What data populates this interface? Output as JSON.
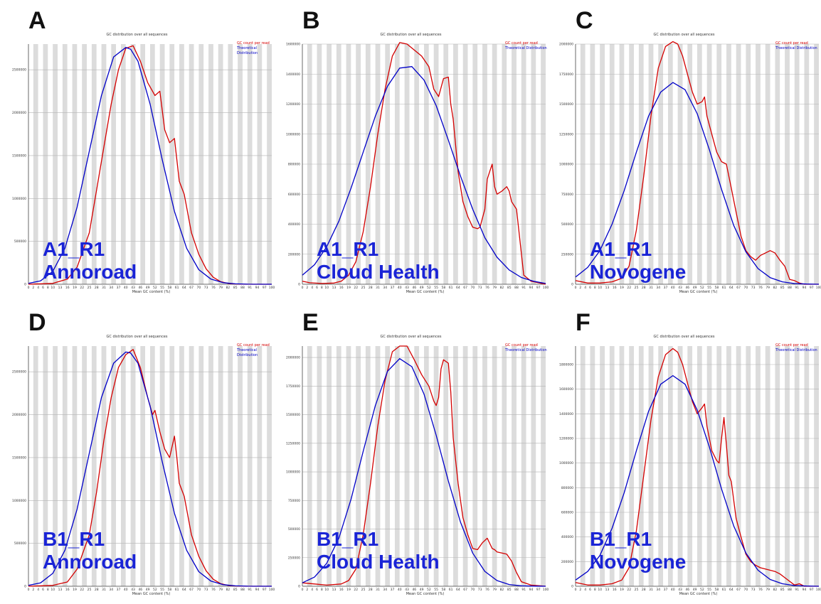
{
  "shared": {
    "chart_title": "GC distribution over all sequences",
    "xlabel": "Mean GC content (%)",
    "legend_red": "GC count per read",
    "legend_blue": "Theoretical Distribution",
    "x_ticks": [
      "0",
      "2",
      "4",
      "6",
      "8",
      "10",
      "13",
      "16",
      "19",
      "22",
      "25",
      "28",
      "31",
      "34",
      "37",
      "40",
      "43",
      "46",
      "49",
      "52",
      "55",
      "58",
      "61",
      "64",
      "67",
      "70",
      "73",
      "76",
      "79",
      "82",
      "85",
      "88",
      "91",
      "94",
      "97",
      "100"
    ],
    "colors": {
      "red": "#d40000",
      "blue": "#0000c8",
      "label": "#1a24d6"
    }
  },
  "panels": [
    {
      "letter": "A",
      "label_line1": "A1_R1",
      "label_line2": "Annoroad"
    },
    {
      "letter": "B",
      "label_line1": "A1_R1",
      "label_line2": "Cloud Health"
    },
    {
      "letter": "C",
      "label_line1": "A1_R1",
      "label_line2": "Novogene"
    },
    {
      "letter": "D",
      "label_line1": "B1_R1",
      "label_line2": "Annoroad"
    },
    {
      "letter": "E",
      "label_line1": "B1_R1",
      "label_line2": "Cloud Health"
    },
    {
      "letter": "F",
      "label_line1": "B1_R1",
      "label_line2": "Novogene"
    }
  ],
  "chart_data": [
    {
      "type": "line",
      "title": "GC distribution over all sequences",
      "xlabel": "Mean GC content (%)",
      "xlim": [
        0,
        100
      ],
      "ylim": [
        0,
        2800000
      ],
      "y_ticks": [
        0,
        500000,
        1000000,
        1500000,
        2000000,
        2500000
      ],
      "series": [
        {
          "name": "GC count per read",
          "x": [
            0,
            10,
            16,
            20,
            25,
            28,
            31,
            34,
            37,
            40,
            43,
            46,
            49,
            52,
            54,
            56,
            58,
            60,
            61,
            62,
            64,
            67,
            70,
            73,
            76,
            79,
            82,
            85,
            90,
            100
          ],
          "y": [
            0,
            10000,
            60000,
            200000,
            600000,
            1100000,
            1600000,
            2100000,
            2500000,
            2750000,
            2780000,
            2600000,
            2350000,
            2200000,
            2250000,
            1800000,
            1650000,
            1700000,
            1450000,
            1200000,
            1050000,
            600000,
            350000,
            180000,
            80000,
            30000,
            10000,
            3000,
            0,
            0
          ]
        },
        {
          "name": "Theoretical Distribution",
          "x": [
            0,
            5,
            10,
            15,
            20,
            25,
            30,
            35,
            40,
            42,
            45,
            50,
            55,
            60,
            65,
            70,
            75,
            80,
            85,
            90,
            100
          ],
          "y": [
            10000,
            40000,
            150000,
            420000,
            900000,
            1550000,
            2200000,
            2650000,
            2760000,
            2740000,
            2600000,
            2100000,
            1450000,
            850000,
            420000,
            170000,
            60000,
            18000,
            5000,
            1000,
            0
          ]
        }
      ]
    },
    {
      "type": "line",
      "title": "GC distribution over all sequences",
      "xlabel": "Mean GC content (%)",
      "xlim": [
        0,
        100
      ],
      "ylim": [
        0,
        1600000
      ],
      "y_ticks": [
        0,
        200000,
        400000,
        600000,
        800000,
        1000000,
        1200000,
        1400000,
        1600000
      ],
      "series": [
        {
          "name": "GC count per read",
          "x": [
            0,
            3,
            8,
            13,
            16,
            19,
            22,
            25,
            28,
            31,
            34,
            37,
            40,
            43,
            46,
            49,
            52,
            54,
            56,
            58,
            60,
            61,
            62,
            64,
            66,
            68,
            70,
            72,
            73,
            75,
            76,
            77,
            78,
            79,
            80,
            82,
            84,
            85,
            86,
            88,
            91,
            94,
            100
          ],
          "y": [
            20000,
            10000,
            5000,
            8000,
            20000,
            60000,
            150000,
            350000,
            650000,
            1000000,
            1300000,
            1520000,
            1610000,
            1600000,
            1560000,
            1520000,
            1450000,
            1300000,
            1250000,
            1370000,
            1380000,
            1200000,
            1100000,
            750000,
            550000,
            450000,
            380000,
            370000,
            380000,
            500000,
            700000,
            750000,
            800000,
            650000,
            600000,
            620000,
            650000,
            620000,
            550000,
            500000,
            60000,
            20000,
            0
          ]
        },
        {
          "name": "Theoretical Distribution",
          "x": [
            0,
            5,
            10,
            15,
            20,
            25,
            30,
            35,
            40,
            45,
            50,
            55,
            60,
            65,
            70,
            75,
            80,
            85,
            90,
            95,
            100
          ],
          "y": [
            60000,
            130000,
            250000,
            420000,
            640000,
            880000,
            1120000,
            1320000,
            1440000,
            1450000,
            1360000,
            1190000,
            960000,
            720000,
            500000,
            310000,
            180000,
            95000,
            45000,
            20000,
            5000
          ]
        }
      ]
    },
    {
      "type": "line",
      "title": "GC distribution over all sequences",
      "xlabel": "Mean GC content (%)",
      "xlim": [
        0,
        100
      ],
      "ylim": [
        0,
        2000000
      ],
      "y_ticks": [
        0,
        250000,
        500000,
        750000,
        1000000,
        1250000,
        1500000,
        1750000,
        2000000
      ],
      "series": [
        {
          "name": "GC count per read",
          "x": [
            0,
            5,
            10,
            15,
            19,
            22,
            25,
            28,
            31,
            34,
            37,
            40,
            42,
            44,
            46,
            48,
            50,
            52,
            53,
            54,
            56,
            58,
            60,
            62,
            64,
            66,
            68,
            70,
            72,
            74,
            76,
            78,
            80,
            82,
            84,
            86,
            88,
            90,
            92,
            94,
            100
          ],
          "y": [
            30000,
            10000,
            10000,
            20000,
            50000,
            150000,
            450000,
            900000,
            1400000,
            1800000,
            1980000,
            2020000,
            2000000,
            1900000,
            1750000,
            1600000,
            1500000,
            1520000,
            1560000,
            1400000,
            1250000,
            1100000,
            1020000,
            1000000,
            800000,
            600000,
            400000,
            280000,
            230000,
            200000,
            240000,
            260000,
            280000,
            260000,
            200000,
            150000,
            40000,
            30000,
            10000,
            0,
            0
          ]
        },
        {
          "name": "Theoretical Distribution",
          "x": [
            0,
            5,
            10,
            15,
            20,
            25,
            30,
            35,
            40,
            45,
            50,
            55,
            60,
            65,
            70,
            75,
            80,
            85,
            90,
            95,
            100
          ],
          "y": [
            60000,
            140000,
            280000,
            500000,
            780000,
            1100000,
            1400000,
            1600000,
            1680000,
            1620000,
            1420000,
            1120000,
            790000,
            490000,
            270000,
            130000,
            55000,
            20000,
            6000,
            1500,
            0
          ]
        }
      ]
    },
    {
      "type": "line",
      "title": "GC distribution over all sequences",
      "xlabel": "Mean GC content (%)",
      "xlim": [
        0,
        100
      ],
      "ylim": [
        0,
        2800000
      ],
      "y_ticks": [
        0,
        500000,
        1000000,
        1500000,
        2000000,
        2500000
      ],
      "series": [
        {
          "name": "GC count per read",
          "x": [
            0,
            10,
            16,
            20,
            25,
            28,
            31,
            34,
            37,
            40,
            43,
            46,
            49,
            51,
            52,
            54,
            56,
            58,
            60,
            61,
            62,
            64,
            67,
            70,
            73,
            76,
            79,
            82,
            85,
            90,
            100
          ],
          "y": [
            0,
            10000,
            50000,
            200000,
            600000,
            1100000,
            1700000,
            2200000,
            2550000,
            2700000,
            2760000,
            2550000,
            2200000,
            2000000,
            2050000,
            1800000,
            1600000,
            1500000,
            1750000,
            1500000,
            1200000,
            1050000,
            600000,
            350000,
            180000,
            80000,
            30000,
            10000,
            3000,
            0,
            0
          ]
        },
        {
          "name": "Theoretical Distribution",
          "x": [
            0,
            5,
            10,
            15,
            20,
            25,
            30,
            35,
            40,
            42,
            45,
            50,
            55,
            60,
            65,
            70,
            75,
            80,
            85,
            90,
            100
          ],
          "y": [
            10000,
            40000,
            150000,
            420000,
            900000,
            1550000,
            2200000,
            2600000,
            2730000,
            2720000,
            2600000,
            2100000,
            1450000,
            850000,
            420000,
            170000,
            60000,
            18000,
            5000,
            1000,
            0
          ]
        }
      ]
    },
    {
      "type": "line",
      "title": "GC distribution over all sequences",
      "xlabel": "Mean GC content (%)",
      "xlim": [
        0,
        100
      ],
      "ylim": [
        0,
        2100000
      ],
      "y_ticks": [
        0,
        250000,
        500000,
        750000,
        1000000,
        1250000,
        1500000,
        1750000,
        2000000
      ],
      "series": [
        {
          "name": "GC count per read",
          "x": [
            0,
            5,
            10,
            16,
            19,
            22,
            25,
            28,
            31,
            34,
            37,
            40,
            43,
            46,
            49,
            52,
            54,
            55,
            56,
            57,
            58,
            60,
            61,
            62,
            64,
            66,
            68,
            70,
            72,
            74,
            76,
            78,
            79,
            80,
            82,
            84,
            86,
            88,
            90,
            94,
            100
          ],
          "y": [
            30000,
            20000,
            10000,
            20000,
            50000,
            150000,
            450000,
            900000,
            1400000,
            1800000,
            2050000,
            2100000,
            2100000,
            1980000,
            1850000,
            1750000,
            1620000,
            1580000,
            1650000,
            1900000,
            1980000,
            1950000,
            1700000,
            1300000,
            900000,
            600000,
            450000,
            330000,
            320000,
            380000,
            420000,
            330000,
            320000,
            300000,
            290000,
            280000,
            220000,
            120000,
            40000,
            10000,
            0
          ]
        },
        {
          "name": "Theoretical Distribution",
          "x": [
            0,
            5,
            10,
            15,
            20,
            25,
            30,
            35,
            40,
            45,
            50,
            55,
            60,
            65,
            70,
            75,
            80,
            85,
            90,
            95,
            100
          ],
          "y": [
            30000,
            80000,
            200000,
            420000,
            760000,
            1180000,
            1580000,
            1880000,
            1990000,
            1920000,
            1680000,
            1320000,
            920000,
            560000,
            290000,
            130000,
            50000,
            15000,
            4000,
            1000,
            0
          ]
        }
      ]
    },
    {
      "type": "line",
      "title": "GC distribution over all sequences",
      "xlabel": "Mean GC content (%)",
      "xlim": [
        0,
        100
      ],
      "ylim": [
        0,
        1950000
      ],
      "y_ticks": [
        0,
        200000,
        400000,
        600000,
        800000,
        1000000,
        1200000,
        1400000,
        1600000,
        1800000
      ],
      "series": [
        {
          "name": "GC count per read",
          "x": [
            0,
            5,
            10,
            15,
            19,
            22,
            25,
            28,
            31,
            34,
            37,
            40,
            42,
            44,
            46,
            48,
            50,
            52,
            53,
            54,
            56,
            58,
            59,
            60,
            61,
            62,
            63,
            64,
            66,
            68,
            70,
            72,
            74,
            76,
            78,
            80,
            82,
            84,
            86,
            88,
            90,
            92,
            94,
            100
          ],
          "y": [
            30000,
            10000,
            10000,
            20000,
            50000,
            150000,
            450000,
            900000,
            1350000,
            1700000,
            1880000,
            1930000,
            1900000,
            1800000,
            1650000,
            1500000,
            1400000,
            1450000,
            1480000,
            1300000,
            1100000,
            1020000,
            1000000,
            1200000,
            1370000,
            1150000,
            900000,
            850000,
            550000,
            400000,
            260000,
            200000,
            170000,
            150000,
            140000,
            130000,
            120000,
            100000,
            70000,
            40000,
            10000,
            20000,
            0,
            0
          ]
        },
        {
          "name": "Theoretical Distribution",
          "x": [
            0,
            5,
            10,
            15,
            20,
            25,
            30,
            35,
            40,
            45,
            50,
            55,
            60,
            65,
            70,
            75,
            80,
            85,
            90,
            95,
            100
          ],
          "y": [
            50000,
            120000,
            250000,
            470000,
            760000,
            1100000,
            1420000,
            1640000,
            1710000,
            1640000,
            1430000,
            1130000,
            790000,
            490000,
            270000,
            130000,
            55000,
            20000,
            6000,
            1500,
            0
          ]
        }
      ]
    }
  ]
}
